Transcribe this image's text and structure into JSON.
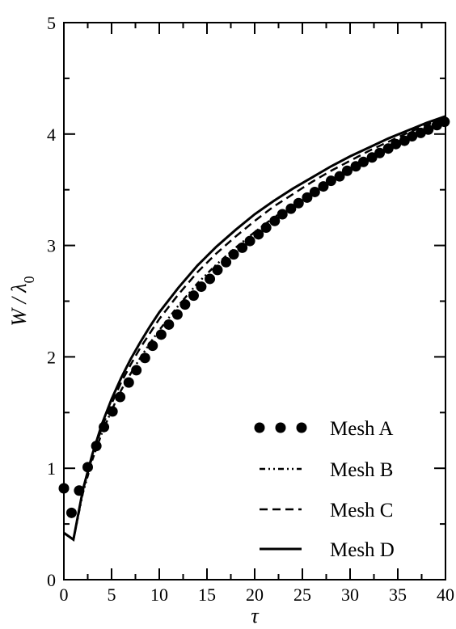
{
  "chart_data": {
    "type": "line",
    "title": "",
    "xlabel": "τ",
    "ylabel": "W / λ0",
    "xlim": [
      0,
      40
    ],
    "ylim": [
      0,
      5
    ],
    "xticks": [
      0,
      5,
      10,
      15,
      20,
      25,
      30,
      35,
      40
    ],
    "yticks": [
      0,
      1,
      2,
      3,
      4,
      5
    ],
    "xtick_labels": [
      "0",
      "5",
      "10",
      "15",
      "20",
      "25",
      "30",
      "35",
      "40"
    ],
    "ytick_labels": [
      "0",
      "1",
      "2",
      "3",
      "4",
      "5"
    ],
    "grid": false,
    "legend_position": "bottom-right",
    "series": [
      {
        "name": "Mesh A",
        "style": "dots",
        "color": "#000000",
        "x": [
          0,
          0.8,
          1.6,
          2.5,
          3.4,
          4.2,
          5.1,
          5.9,
          6.8,
          7.6,
          8.5,
          9.3,
          10.2,
          11.0,
          11.9,
          12.7,
          13.6,
          14.4,
          15.3,
          16.1,
          17.0,
          17.8,
          18.7,
          19.5,
          20.4,
          21.2,
          22.1,
          22.9,
          23.8,
          24.6,
          25.5,
          26.3,
          27.2,
          28.0,
          28.9,
          29.7,
          30.6,
          31.4,
          32.3,
          33.1,
          34.0,
          34.8,
          35.7,
          36.5,
          37.4,
          38.2,
          39.1,
          39.9
        ],
        "y": [
          0.82,
          0.6,
          0.8,
          1.01,
          1.2,
          1.37,
          1.51,
          1.64,
          1.77,
          1.88,
          1.99,
          2.1,
          2.2,
          2.29,
          2.38,
          2.47,
          2.55,
          2.63,
          2.7,
          2.78,
          2.85,
          2.92,
          2.98,
          3.04,
          3.1,
          3.16,
          3.22,
          3.28,
          3.33,
          3.38,
          3.43,
          3.48,
          3.53,
          3.58,
          3.62,
          3.67,
          3.71,
          3.75,
          3.79,
          3.83,
          3.87,
          3.91,
          3.94,
          3.98,
          4.01,
          4.04,
          4.08,
          4.11
        ]
      },
      {
        "name": "Mesh B",
        "style": "dash-dot-dot",
        "color": "#000000",
        "x": [
          0,
          1.0,
          2.0,
          3.0,
          4.0,
          5.0,
          6.0,
          7.0,
          8.0,
          9.0,
          10.0,
          12.0,
          14.0,
          16.0,
          18.0,
          20.0,
          22.0,
          24.0,
          26.0,
          28.0,
          30.0,
          32.0,
          34.0,
          36.0,
          38.0,
          40.0
        ],
        "y": [
          0.42,
          0.36,
          0.78,
          1.08,
          1.32,
          1.52,
          1.7,
          1.85,
          1.99,
          2.12,
          2.24,
          2.46,
          2.66,
          2.83,
          2.98,
          3.12,
          3.25,
          3.37,
          3.48,
          3.58,
          3.68,
          3.77,
          3.86,
          3.95,
          4.03,
          4.1
        ]
      },
      {
        "name": "Mesh C",
        "style": "dashed",
        "color": "#000000",
        "x": [
          0,
          1.0,
          2.0,
          3.0,
          4.0,
          5.0,
          6.0,
          7.0,
          8.0,
          9.0,
          10.0,
          12.0,
          14.0,
          16.0,
          18.0,
          20.0,
          22.0,
          24.0,
          26.0,
          28.0,
          30.0,
          32.0,
          34.0,
          36.0,
          38.0,
          40.0
        ],
        "y": [
          0.42,
          0.36,
          0.8,
          1.11,
          1.37,
          1.58,
          1.77,
          1.93,
          2.08,
          2.21,
          2.34,
          2.56,
          2.76,
          2.93,
          3.08,
          3.22,
          3.35,
          3.46,
          3.57,
          3.67,
          3.76,
          3.85,
          3.93,
          4.01,
          4.08,
          4.15
        ]
      },
      {
        "name": "Mesh D",
        "style": "solid",
        "color": "#000000",
        "x": [
          0,
          1.0,
          2.0,
          3.0,
          4.0,
          5.0,
          6.0,
          7.0,
          8.0,
          9.0,
          10.0,
          12.0,
          14.0,
          16.0,
          18.0,
          20.0,
          22.0,
          24.0,
          26.0,
          28.0,
          30.0,
          32.0,
          34.0,
          36.0,
          38.0,
          40.0
        ],
        "y": [
          0.42,
          0.36,
          0.81,
          1.13,
          1.4,
          1.62,
          1.81,
          1.98,
          2.13,
          2.27,
          2.4,
          2.62,
          2.82,
          2.99,
          3.14,
          3.28,
          3.4,
          3.51,
          3.61,
          3.71,
          3.8,
          3.88,
          3.96,
          4.03,
          4.1,
          4.16
        ]
      }
    ]
  }
}
